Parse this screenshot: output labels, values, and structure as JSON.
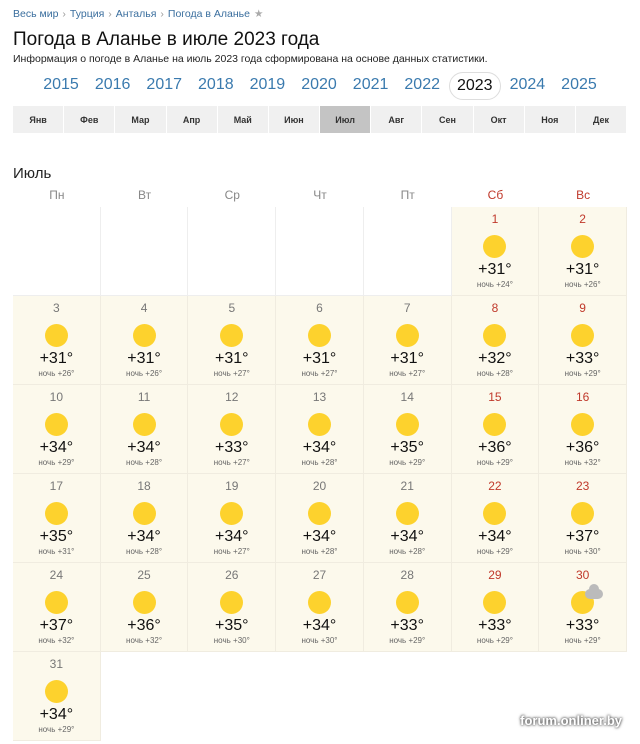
{
  "breadcrumbs": [
    "Весь мир",
    "Турция",
    "Анталья",
    "Погода в Аланье"
  ],
  "title": "Погода в Аланье в июле 2023 года",
  "subtitle": "Информация о погоде в Аланье на июль 2023 года сформирована на основе данных статистики.",
  "years": [
    "2015",
    "2016",
    "2017",
    "2018",
    "2019",
    "2020",
    "2021",
    "2022",
    "2023",
    "2024",
    "2025"
  ],
  "active_year": "2023",
  "months": [
    "Янв",
    "Фев",
    "Мар",
    "Апр",
    "Май",
    "Июн",
    "Июл",
    "Авг",
    "Сен",
    "Окт",
    "Ноя",
    "Дек"
  ],
  "active_month": "Июл",
  "month_title": "Июль",
  "weekdays": [
    "Пн",
    "Вт",
    "Ср",
    "Чт",
    "Пт",
    "Сб",
    "Вс"
  ],
  "night_label": "ночь",
  "leading_empty": 5,
  "days": [
    {
      "d": "1",
      "t": "+31°",
      "n": "+24°",
      "icon": "sun"
    },
    {
      "d": "2",
      "t": "+31°",
      "n": "+26°",
      "icon": "sun"
    },
    {
      "d": "3",
      "t": "+31°",
      "n": "+26°",
      "icon": "sun"
    },
    {
      "d": "4",
      "t": "+31°",
      "n": "+26°",
      "icon": "sun"
    },
    {
      "d": "5",
      "t": "+31°",
      "n": "+27°",
      "icon": "sun"
    },
    {
      "d": "6",
      "t": "+31°",
      "n": "+27°",
      "icon": "sun"
    },
    {
      "d": "7",
      "t": "+31°",
      "n": "+27°",
      "icon": "sun"
    },
    {
      "d": "8",
      "t": "+32°",
      "n": "+28°",
      "icon": "sun"
    },
    {
      "d": "9",
      "t": "+33°",
      "n": "+29°",
      "icon": "sun"
    },
    {
      "d": "10",
      "t": "+34°",
      "n": "+29°",
      "icon": "sun"
    },
    {
      "d": "11",
      "t": "+34°",
      "n": "+28°",
      "icon": "sun"
    },
    {
      "d": "12",
      "t": "+33°",
      "n": "+27°",
      "icon": "sun"
    },
    {
      "d": "13",
      "t": "+34°",
      "n": "+28°",
      "icon": "sun"
    },
    {
      "d": "14",
      "t": "+35°",
      "n": "+29°",
      "icon": "sun"
    },
    {
      "d": "15",
      "t": "+36°",
      "n": "+29°",
      "icon": "sun"
    },
    {
      "d": "16",
      "t": "+36°",
      "n": "+32°",
      "icon": "sun"
    },
    {
      "d": "17",
      "t": "+35°",
      "n": "+31°",
      "icon": "sun"
    },
    {
      "d": "18",
      "t": "+34°",
      "n": "+28°",
      "icon": "sun"
    },
    {
      "d": "19",
      "t": "+34°",
      "n": "+27°",
      "icon": "sun"
    },
    {
      "d": "20",
      "t": "+34°",
      "n": "+28°",
      "icon": "sun"
    },
    {
      "d": "21",
      "t": "+34°",
      "n": "+28°",
      "icon": "sun"
    },
    {
      "d": "22",
      "t": "+34°",
      "n": "+29°",
      "icon": "sun"
    },
    {
      "d": "23",
      "t": "+37°",
      "n": "+30°",
      "icon": "sun"
    },
    {
      "d": "24",
      "t": "+37°",
      "n": "+32°",
      "icon": "sun"
    },
    {
      "d": "25",
      "t": "+36°",
      "n": "+32°",
      "icon": "sun"
    },
    {
      "d": "26",
      "t": "+35°",
      "n": "+30°",
      "icon": "sun"
    },
    {
      "d": "27",
      "t": "+34°",
      "n": "+30°",
      "icon": "sun"
    },
    {
      "d": "28",
      "t": "+33°",
      "n": "+29°",
      "icon": "sun"
    },
    {
      "d": "29",
      "t": "+33°",
      "n": "+29°",
      "icon": "sun"
    },
    {
      "d": "30",
      "t": "+33°",
      "n": "+29°",
      "icon": "sun-cloud"
    },
    {
      "d": "31",
      "t": "+34°",
      "n": "+29°",
      "icon": "sun"
    }
  ],
  "colors": {
    "link": "#3a7aae",
    "weekend": "#c0392b",
    "sun": "#fdd22d",
    "cell_bg": "#fcf9ec"
  },
  "watermark": "forum.onliner.by"
}
